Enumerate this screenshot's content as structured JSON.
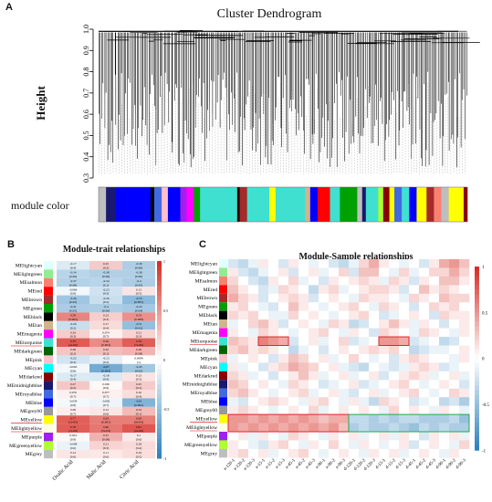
{
  "panel_a": {
    "letter": "A",
    "title": "Cluster Dendrogram",
    "ylabel": "Height",
    "yticks": [
      "1.0",
      "0.9",
      "0.8",
      "0.7",
      "0.6",
      "0.5",
      "0.4",
      "0.3"
    ],
    "module_color_label": "module color"
  },
  "panel_b": {
    "letter": "B",
    "title": "Module-trait relationships",
    "traits": [
      "Oxalic Acid",
      "Malic Acid",
      "Citric Acid"
    ],
    "legend_ticks": [
      "1",
      "0.5",
      "0",
      "-0.5",
      "-1"
    ]
  },
  "panel_c": {
    "letter": "C",
    "title": "Module-Sample relationships",
    "samples": [
      "a-120-1",
      "a-120-2",
      "a-120-3",
      "a-15-1",
      "a-15-2",
      "a-15-3",
      "a-45-1",
      "a-45-2",
      "a-45-3",
      "a-90-1",
      "a-90-2",
      "a-90-3",
      "d-120-1",
      "d-120-2",
      "d-120-3",
      "d-15-1",
      "d-15-2",
      "d-15-3",
      "d-45-1",
      "d-45-2",
      "d-45-3",
      "d-90-1",
      "d-90-2",
      "d-90-3"
    ],
    "legend_ticks": [
      "1",
      "0.5",
      "0",
      "-0.5",
      "-1"
    ]
  },
  "modules": [
    {
      "name": "MElightcyan",
      "color": "#e0ffff"
    },
    {
      "name": "MElightgreen",
      "color": "#90ee90"
    },
    {
      "name": "MEsalmon",
      "color": "#fa8072"
    },
    {
      "name": "MEred",
      "color": "#ff0000"
    },
    {
      "name": "MEbrown",
      "color": "#a52a2a"
    },
    {
      "name": "MEgreen",
      "color": "#00a000"
    },
    {
      "name": "MEblack",
      "color": "#000000"
    },
    {
      "name": "MEtan",
      "color": "#d2b48c"
    },
    {
      "name": "MEmagenta",
      "color": "#ff00ff"
    },
    {
      "name": "MEturquoise",
      "color": "#40e0d0"
    },
    {
      "name": "MEdarkgreen",
      "color": "#006400"
    },
    {
      "name": "MEpink",
      "color": "#ffc0cb"
    },
    {
      "name": "MEcyan",
      "color": "#00ffff"
    },
    {
      "name": "MEdarkred",
      "color": "#8b0000"
    },
    {
      "name": "MEmidnightblue",
      "color": "#191970"
    },
    {
      "name": "MEroyalblue",
      "color": "#4169e1"
    },
    {
      "name": "MEblue",
      "color": "#0000ff"
    },
    {
      "name": "MEgrey60",
      "color": "#999999"
    },
    {
      "name": "MEyellow",
      "color": "#ffff00"
    },
    {
      "name": "MElightyellow",
      "color": "#ffffe0"
    },
    {
      "name": "MEpurple",
      "color": "#a020f0"
    },
    {
      "name": "MEgreenyellow",
      "color": "#adff2f"
    },
    {
      "name": "MEgrey",
      "color": "#bebebe"
    }
  ],
  "trait_cells": [
    [
      [
        "-0.17",
        "(0.4)"
      ],
      [
        "0.25",
        "(0.2)"
      ],
      [
        "-0.39",
        "(0.06)"
      ]
    ],
    [
      [
        "-0.34",
        "(0.09)"
      ],
      [
        "-0.38",
        "(0.06)"
      ],
      [
        "-0.38",
        "(0.06)"
      ]
    ],
    [
      [
        "-0.37",
        "(0.08)"
      ],
      [
        "-0.34",
        "(0.1)"
      ],
      [
        "-0.4",
        "(0.05)"
      ]
    ],
    [
      [
        "-0.066",
        "(0.8)"
      ],
      [
        "-0.23",
        "(0.3)"
      ],
      [
        "0.13",
        "(0.5)"
      ]
    ],
    [
      [
        "-0.46",
        "(0.02)"
      ],
      [
        "-0.26",
        "(0.2)"
      ],
      [
        "-0.55",
        "(0.005)"
      ]
    ],
    [
      [
        "-0.41",
        "(0.05)"
      ],
      [
        "-0.4",
        "(0.06)"
      ],
      [
        "-0.43",
        "(0.04)"
      ]
    ],
    [
      [
        "0.59",
        "(0.002)"
      ],
      [
        "0.23",
        "(0.3)"
      ],
      [
        "0.53",
        "(0.008)"
      ]
    ],
    [
      [
        "-0.26",
        "(0.2)"
      ],
      [
        "0.17",
        "(0.4)"
      ],
      [
        "-0.51",
        "(0.01)"
      ]
    ],
    [
      [
        "0.24",
        "(0.3)"
      ],
      [
        "0.074",
        "(0.7)"
      ],
      [
        "0.21",
        "(0.3)"
      ]
    ],
    [
      [
        "0.79",
        "(4e-06)"
      ],
      [
        "0.56",
        "(0.004)"
      ],
      [
        "0.78",
        "(7e-06)"
      ]
    ],
    [
      [
        "0.28",
        "(0.2)"
      ],
      [
        "0.32",
        "(0.1)"
      ],
      [
        "0.36",
        "(0.08)"
      ]
    ],
    [
      [
        "-0.22",
        "(0.3)"
      ],
      [
        "-0.13",
        "(0.5)"
      ],
      [
        "0.0099",
        "(1)"
      ]
    ],
    [
      [
        "-0.063",
        "(0.8)"
      ],
      [
        "-0.67",
        "(0.004)"
      ],
      [
        "-0.45",
        "(0.02)"
      ]
    ],
    [
      [
        "-0.17",
        "(0.4)"
      ],
      [
        "-0.18",
        "(0.4)"
      ],
      [
        "0.13",
        "(0.5)"
      ]
    ],
    [
      [
        "0.27",
        "(0.2)"
      ],
      [
        "0.036",
        "(0.9)"
      ],
      [
        "0.25",
        "(0.2)"
      ]
    ],
    [
      [
        "0.076",
        "(0.7)"
      ],
      [
        "0.077",
        "(0.7)"
      ],
      [
        "0.16",
        "(0.4)"
      ]
    ],
    [
      [
        "-0.059",
        "(0.8)"
      ],
      [
        "-0.082",
        "(0.7)"
      ],
      [
        "-0.61",
        "(0.002)"
      ]
    ],
    [
      [
        "0.08",
        "(0.7)"
      ],
      [
        "0.12",
        "(0.6)"
      ],
      [
        "0.33",
        "(0.1)"
      ]
    ],
    [
      [
        "0.77",
        "(1e-05)"
      ],
      [
        "0.63",
        "(0.001)"
      ],
      [
        "0.63",
        "(9e-04)"
      ]
    ],
    [
      [
        "0.78",
        "(7e-06)"
      ],
      [
        "0.66",
        "(5e-04)"
      ],
      [
        "0.81",
        "(2e-06)"
      ]
    ],
    [
      [
        "0.034",
        "(0.9)"
      ],
      [
        "0.37",
        "(0.08)"
      ],
      [
        "0.1",
        "(0.6)"
      ]
    ],
    [
      [
        "-0.098",
        "(0.6)"
      ],
      [
        "0.21",
        "(0.3)"
      ],
      [
        "0.18",
        "(0.4)"
      ]
    ],
    [
      [
        "0.12",
        "(0.6)"
      ],
      [
        "0.11",
        "(0.6)"
      ],
      [
        "0.16",
        "(0.5)"
      ]
    ]
  ],
  "sample_matrix": [
    [
      -0.2,
      -0.3,
      -0.1,
      0.1,
      0,
      -0.2,
      0.1,
      0,
      -0.1,
      0,
      -0.2,
      -0.3,
      -0.1,
      0.2,
      0.4,
      0.1,
      0,
      -0.1,
      0,
      -0.2,
      0.1,
      0.4,
      0.5,
      0.3
    ],
    [
      0.1,
      -0.2,
      -0.3,
      -0.1,
      0,
      0.1,
      -0.2,
      0,
      0.1,
      -0.1,
      0,
      0.2,
      -0.2,
      0.3,
      0.3,
      0,
      -0.1,
      0.2,
      -0.1,
      0,
      0.2,
      0.2,
      0.4,
      0.2
    ],
    [
      0.2,
      0,
      -0.2,
      -0.3,
      0.1,
      0,
      0.2,
      -0.1,
      0,
      -0.2,
      0.1,
      0,
      0.1,
      0.2,
      0.1,
      -0.1,
      0.2,
      0.1,
      -0.2,
      0.1,
      0,
      0.3,
      0.3,
      0.1
    ],
    [
      0.3,
      0.1,
      0,
      -0.2,
      -0.1,
      0.2,
      0.1,
      0,
      -0.3,
      0.1,
      0.2,
      -0.1,
      0,
      0.1,
      0.2,
      0.2,
      0.1,
      -0.2,
      0,
      0.3,
      0.1,
      0.2,
      0.1,
      0
    ],
    [
      0.4,
      0.2,
      0.1,
      -0.2,
      0,
      0.1,
      0.2,
      0.1,
      -0.2,
      0,
      0.1,
      0,
      -0.1,
      0.2,
      0.1,
      0.1,
      0,
      -0.1,
      0.2,
      0.1,
      0,
      0.3,
      0.2,
      0.2
    ],
    [
      0.1,
      0.2,
      0,
      -0.1,
      -0.2,
      0,
      0.3,
      0.1,
      0,
      -0.1,
      0,
      0.1,
      0.2,
      0,
      -0.1,
      0.2,
      0.1,
      0,
      -0.2,
      0,
      0.2,
      0.1,
      0.2,
      0
    ],
    [
      0.2,
      0.1,
      0.2,
      0,
      -0.1,
      -0.1,
      0.2,
      0,
      0.1,
      0,
      -0.1,
      0,
      0.1,
      0.2,
      0,
      -0.2,
      -0.1,
      0,
      0.1,
      0,
      -0.2,
      0.2,
      0.1,
      0.1
    ],
    [
      -0.1,
      0,
      0.2,
      0.3,
      0.1,
      -0.2,
      0,
      0.1,
      0,
      -0.1,
      0.2,
      0.1,
      -0.3,
      -0.2,
      0,
      0.1,
      0.3,
      0.1,
      -0.1,
      0.1,
      0,
      -0.2,
      0,
      0.1
    ],
    [
      0.1,
      0,
      -0.1,
      0.2,
      0.1,
      0,
      -0.1,
      0,
      0.1,
      0.2,
      0,
      -0.1,
      0.1,
      0,
      -0.2,
      0.2,
      0.1,
      0,
      -0.1,
      0.2,
      0.1,
      0,
      -0.1,
      0.1
    ],
    [
      0.3,
      0.2,
      0.1,
      0.6,
      0.5,
      0.4,
      -0.2,
      0,
      0.1,
      -0.1,
      0,
      0.2,
      -0.2,
      -0.1,
      0,
      0.5,
      0.5,
      0.4,
      -0.2,
      -0.1,
      0,
      -0.3,
      -0.2,
      0
    ],
    [
      0.2,
      0.3,
      0.1,
      0.2,
      0.1,
      0,
      -0.3,
      -0.1,
      0,
      -0.2,
      0,
      0.1,
      0,
      0.1,
      0.2,
      0.1,
      0.2,
      0,
      -0.3,
      -0.2,
      -0.1,
      -0.1,
      0,
      0.1
    ],
    [
      -0.1,
      0,
      0.1,
      0,
      -0.2,
      0.1,
      0.3,
      0.2,
      0,
      0.1,
      -0.1,
      0,
      0.2,
      0,
      -0.1,
      0,
      -0.2,
      0.1,
      0.2,
      0.1,
      0,
      0,
      -0.1,
      0.1
    ],
    [
      0.1,
      -0.1,
      0,
      -0.2,
      0.1,
      0.2,
      0.4,
      0.3,
      0.2,
      0,
      0.1,
      -0.1,
      -0.2,
      -0.3,
      0,
      -0.1,
      -0.2,
      -0.1,
      0.1,
      0.2,
      0.1,
      -0.2,
      -0.1,
      0
    ],
    [
      0.2,
      0.1,
      -0.1,
      0,
      -0.2,
      0,
      0.1,
      0.3,
      0.1,
      -0.1,
      0,
      0.1,
      -0.1,
      0,
      0.1,
      -0.2,
      0,
      0.1,
      0.2,
      0.1,
      -0.1,
      0,
      0.1,
      -0.1
    ],
    [
      0.3,
      0.2,
      0,
      0.1,
      0,
      -0.1,
      0.2,
      0.1,
      0,
      -0.2,
      -0.1,
      0,
      0.1,
      -0.2,
      -0.1,
      0,
      0.1,
      0.2,
      0,
      -0.1,
      0,
      0.1,
      0,
      -0.2
    ],
    [
      0.2,
      0.3,
      0.1,
      0,
      -0.1,
      0,
      0.1,
      0.2,
      -0.1,
      0,
      0.1,
      -0.1,
      -0.2,
      0,
      0.1,
      -0.1,
      0,
      0.1,
      0.2,
      0,
      -0.1,
      0,
      0.2,
      0.1
    ],
    [
      -0.1,
      -0.2,
      0,
      0.1,
      0.2,
      0.1,
      0,
      -0.1,
      0.1,
      0.2,
      0,
      -0.1,
      0.1,
      -0.1,
      -0.3,
      0.2,
      0.1,
      0,
      -0.2,
      -0.1,
      0,
      -0.3,
      -0.2,
      -0.4
    ],
    [
      0.1,
      0.2,
      0.1,
      0,
      -0.1,
      0,
      0.1,
      0,
      0.2,
      -0.1,
      0,
      0.1,
      0,
      0.1,
      0,
      -0.1,
      0.2,
      0,
      0.1,
      0,
      -0.1,
      0.1,
      0,
      -0.1
    ],
    [
      0.5,
      0.5,
      0.4,
      0.5,
      0.4,
      0.5,
      0.4,
      0.5,
      0.4,
      0.3,
      0.4,
      0.4,
      -0.3,
      -0.3,
      -0.4,
      -0.3,
      -0.4,
      -0.3,
      -0.3,
      -0.4,
      -0.4,
      -0.4,
      -0.3,
      -0.5
    ],
    [
      0.5,
      0.4,
      0.5,
      0.4,
      0.5,
      0.4,
      0.5,
      0.4,
      0.5,
      0.4,
      0.5,
      0.3,
      -0.4,
      -0.3,
      -0.4,
      -0.4,
      -0.3,
      -0.4,
      -0.5,
      -0.3,
      -0.4,
      -0.3,
      -0.4,
      -0.4
    ],
    [
      0,
      0.1,
      -0.1,
      0.1,
      0,
      -0.1,
      0.2,
      0.1,
      0,
      -0.1,
      0.1,
      0,
      0.1,
      -0.1,
      0,
      0.1,
      -0.1,
      0.1,
      0,
      -0.2,
      0.1,
      0,
      0.1,
      -0.1
    ],
    [
      0.1,
      0,
      -0.1,
      -0.2,
      0.1,
      0.2,
      0,
      -0.1,
      0.1,
      0,
      0.2,
      0,
      -0.1,
      0.1,
      0,
      -0.1,
      0,
      0.1,
      -0.2,
      0,
      0.1,
      0,
      -0.1,
      0.2
    ],
    [
      0.1,
      0.2,
      0,
      0.1,
      -0.1,
      0,
      0.1,
      0.2,
      0,
      -0.1,
      0,
      0.1,
      0,
      -0.1,
      0.1,
      0,
      0.1,
      -0.1,
      0,
      0.1,
      0,
      -0.1,
      0.1,
      0
    ]
  ]
}
